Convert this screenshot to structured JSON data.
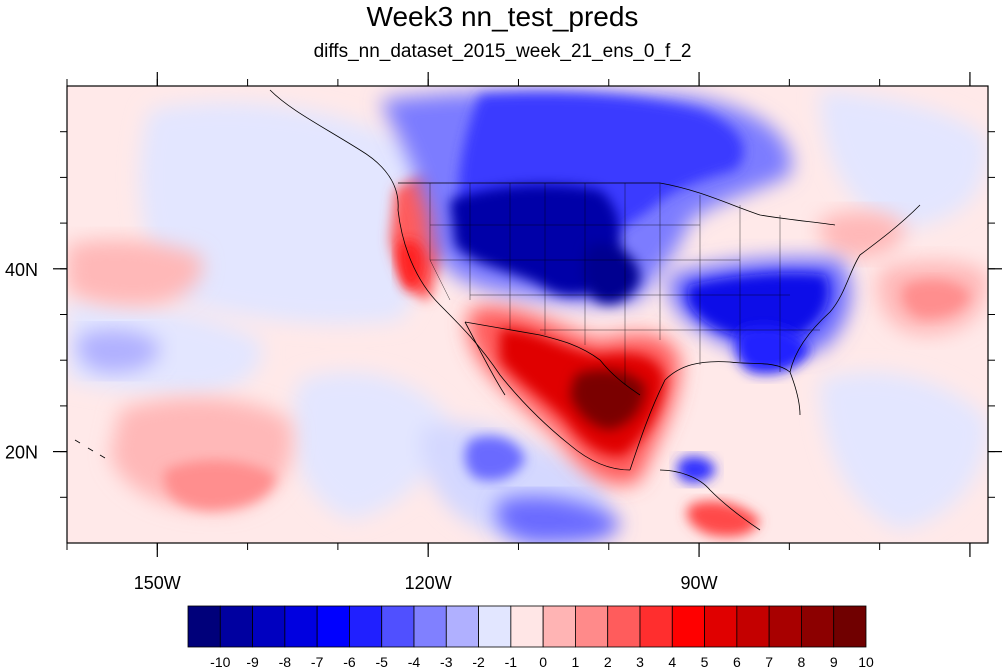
{
  "title": "Week3 nn_test_preds",
  "subtitle": "diffs_nn_dataset_2015_week_21_ens_0_f_2",
  "map": {
    "lon_range": [
      -160,
      -58
    ],
    "lat_range": [
      10,
      60
    ],
    "lon_ticks": [
      {
        "value": -150,
        "label": "150W"
      },
      {
        "value": -120,
        "label": "120W"
      },
      {
        "value": -90,
        "label": "90W"
      }
    ],
    "lat_ticks": [
      {
        "value": 40,
        "label": "40N"
      },
      {
        "value": 20,
        "label": "20N"
      }
    ]
  },
  "colorbar": {
    "labels": [
      "-10",
      "-9",
      "-8",
      "-7",
      "-6",
      "-5",
      "-4",
      "-3",
      "-2",
      "-1",
      "0",
      "1",
      "2",
      "3",
      "4",
      "5",
      "6",
      "7",
      "8",
      "9",
      "10"
    ],
    "colors": [
      "#00007a",
      "#0000a0",
      "#0000c0",
      "#0000e0",
      "#0000ff",
      "#2020ff",
      "#5050ff",
      "#8080ff",
      "#b0b0ff",
      "#e2e6ff",
      "#ffe6e6",
      "#ffb4b4",
      "#ff8a8a",
      "#ff5c5c",
      "#ff2e2e",
      "#ff0000",
      "#e00000",
      "#c40000",
      "#a80000",
      "#8c0000",
      "#700000"
    ]
  },
  "anomaly_regions": [
    {
      "value": -4,
      "lon": [
        -116,
        -88
      ],
      "lat": [
        47,
        60
      ]
    },
    {
      "value": -8,
      "lon": [
        -112,
        -100
      ],
      "lat": [
        38,
        48
      ]
    },
    {
      "value": -6,
      "lon": [
        -108,
        -96
      ],
      "lat": [
        35,
        44
      ]
    },
    {
      "value": -7,
      "lon": [
        -94,
        -84
      ],
      "lat": [
        35,
        39
      ]
    },
    {
      "value": -6,
      "lon": [
        -86,
        -80
      ],
      "lat": [
        31,
        35
      ]
    },
    {
      "value": 9,
      "lon": [
        -106,
        -97
      ],
      "lat": [
        24,
        32
      ]
    },
    {
      "value": 7,
      "lon": [
        -112,
        -107
      ],
      "lat": [
        27,
        34
      ]
    },
    {
      "value": 3,
      "lon": [
        -125,
        -121
      ],
      "lat": [
        36,
        43
      ]
    },
    {
      "value": 2,
      "lon": [
        -70,
        -64
      ],
      "lat": [
        34,
        40
      ]
    },
    {
      "value": 2,
      "lon": [
        -149,
        -137
      ],
      "lat": [
        14,
        19
      ]
    },
    {
      "value": -2,
      "lon": [
        -154,
        -144
      ],
      "lat": [
        28,
        32
      ]
    },
    {
      "value": -3,
      "lon": [
        -113,
        -104
      ],
      "lat": [
        11,
        18
      ]
    },
    {
      "value": -3,
      "lon": [
        -93,
        -90
      ],
      "lat": [
        19,
        21
      ]
    },
    {
      "value": 4,
      "lon": [
        -87,
        -83
      ],
      "lat": [
        11,
        14
      ]
    }
  ]
}
